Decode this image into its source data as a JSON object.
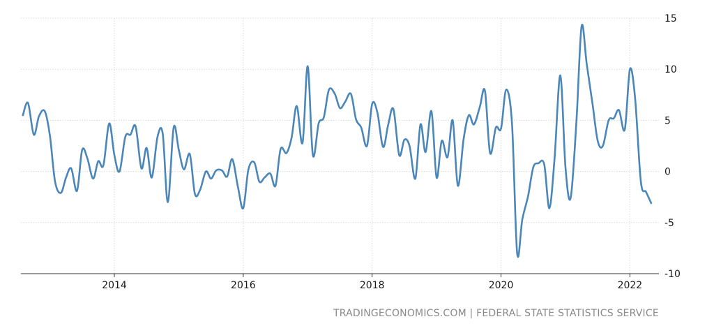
{
  "source_text": "TRADINGECONOMICS.COM | FEDERAL STATE STATISTICS SERVICE",
  "colors": {
    "line": "#4a86b8",
    "grid": "#d9d9d9",
    "axis": "#333333",
    "text": "#1a1a1a",
    "source": "#8a8a8a"
  },
  "chart_data": {
    "type": "line",
    "title": "",
    "xlabel": "",
    "ylabel": "",
    "xlim": [
      2012.55,
      2022.45
    ],
    "ylim": [
      -10,
      15
    ],
    "grid": true,
    "y_ticks": [
      15,
      10,
      5,
      0,
      -5,
      -10
    ],
    "x_ticks": [
      2014,
      2016,
      2018,
      2020,
      2022
    ],
    "x_tick_labels": [
      "2014",
      "2016",
      "2018",
      "2020",
      "2022"
    ],
    "series": [
      {
        "x": [
          2012.58,
          2012.66,
          2012.75,
          2012.83,
          2012.92,
          2013.0,
          2013.08,
          2013.17,
          2013.25,
          2013.33,
          2013.42,
          2013.5,
          2013.58,
          2013.67,
          2013.75,
          2013.83,
          2013.92,
          2014.0,
          2014.08,
          2014.17,
          2014.25,
          2014.33,
          2014.42,
          2014.5,
          2014.58,
          2014.67,
          2014.75,
          2014.83,
          2014.92,
          2015.0,
          2015.08,
          2015.17,
          2015.25,
          2015.33,
          2015.42,
          2015.5,
          2015.58,
          2015.67,
          2015.75,
          2015.83,
          2015.92,
          2016.0,
          2016.08,
          2016.17,
          2016.25,
          2016.33,
          2016.42,
          2016.5,
          2016.58,
          2016.67,
          2016.75,
          2016.83,
          2016.92,
          2017.0,
          2017.08,
          2017.17,
          2017.25,
          2017.33,
          2017.42,
          2017.5,
          2017.58,
          2017.67,
          2017.75,
          2017.83,
          2017.92,
          2018.0,
          2018.08,
          2018.17,
          2018.25,
          2018.33,
          2018.42,
          2018.5,
          2018.58,
          2018.67,
          2018.75,
          2018.83,
          2018.92,
          2019.0,
          2019.08,
          2019.17,
          2019.25,
          2019.33,
          2019.42,
          2019.5,
          2019.58,
          2019.67,
          2019.75,
          2019.83,
          2019.92,
          2020.0,
          2020.08,
          2020.17,
          2020.25,
          2020.33,
          2020.42,
          2020.5,
          2020.58,
          2020.67,
          2020.75,
          2020.83,
          2020.92,
          2021.0,
          2021.08,
          2021.17,
          2021.25,
          2021.33,
          2021.42,
          2021.5,
          2021.58,
          2021.67,
          2021.75,
          2021.83,
          2021.92,
          2022.0,
          2022.08,
          2022.17,
          2022.25,
          2022.33
        ],
        "values": [
          5.5,
          6.7,
          3.6,
          5.4,
          5.9,
          3.5,
          -1.0,
          -2.1,
          -0.6,
          0.3,
          -1.9,
          2.1,
          1.3,
          -0.7,
          1.0,
          0.6,
          4.7,
          1.6,
          0.0,
          3.4,
          3.6,
          4.4,
          0.3,
          2.3,
          -0.6,
          3.4,
          3.7,
          -3.0,
          4.3,
          2.1,
          0.2,
          1.7,
          -2.2,
          -1.8,
          0.0,
          -0.7,
          0.1,
          0.1,
          -0.5,
          1.2,
          -1.6,
          -3.6,
          0.2,
          0.9,
          -1.0,
          -0.6,
          -0.2,
          -1.4,
          2.2,
          1.8,
          3.3,
          6.4,
          2.8,
          10.3,
          1.6,
          4.7,
          5.3,
          8.0,
          7.6,
          6.2,
          6.8,
          7.6,
          5.1,
          4.3,
          2.5,
          6.6,
          5.8,
          2.4,
          4.6,
          6.1,
          1.6,
          3.1,
          2.5,
          -0.7,
          4.6,
          1.9,
          5.9,
          -0.6,
          3.0,
          1.4,
          5.0,
          -1.4,
          3.2,
          5.5,
          4.6,
          6.3,
          7.9,
          1.8,
          4.3,
          4.2,
          8.0,
          4.7,
          -8.0,
          -4.7,
          -2.4,
          0.4,
          0.8,
          0.7,
          -3.6,
          1.2,
          9.4,
          0.4,
          -2.6,
          4.9,
          14.2,
          10.5,
          6.6,
          3.0,
          2.5,
          5.0,
          5.2,
          6.0,
          4.1,
          10.0,
          7.2,
          -1.0,
          -2.0,
          -3.1
        ]
      }
    ]
  }
}
